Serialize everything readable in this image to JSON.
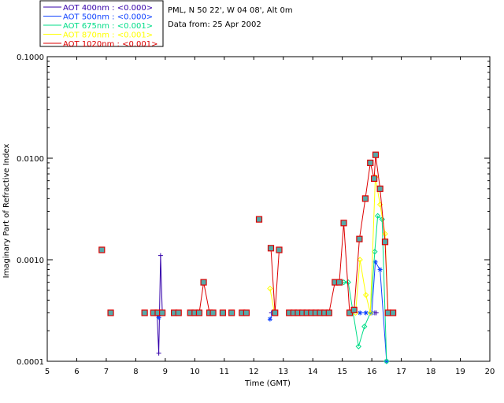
{
  "chart_data": {
    "type": "line",
    "title": "",
    "xlabel": "Time (GMT)",
    "ylabel": "Imaginary Part of Refractive Index",
    "x_range": [
      5,
      20
    ],
    "y_range": [
      0.0001,
      0.1
    ],
    "y_scale": "log",
    "x_ticks": [
      "5",
      "6",
      "7",
      "8",
      "9",
      "10",
      "11",
      "12",
      "13",
      "14",
      "15",
      "16",
      "17",
      "18",
      "19",
      "20"
    ],
    "y_ticks": [
      {
        "value": 0.0001,
        "label": "0.0001"
      },
      {
        "value": 0.001,
        "label": "0.0010"
      },
      {
        "value": 0.01,
        "label": "0.0100"
      },
      {
        "value": 0.1,
        "label": "0.1000"
      }
    ],
    "info_lines": [
      "PML, N 50 22', W 04 08', Alt 0m",
      "Data from: 25 Apr 2002"
    ],
    "legend_placement": "top-left outside",
    "series": [
      {
        "name": "AOT  400nm : <0.000>",
        "color": "#3300aa",
        "marker": "plus",
        "segments": [
          [
            [
              8.72,
              0.0003
            ],
            [
              8.78,
              0.00012
            ],
            [
              8.84,
              0.0011
            ],
            [
              8.9,
              0.0003
            ]
          ],
          [
            [
              12.6,
              0.0003
            ],
            [
              12.7,
              0.0003
            ]
          ],
          [
            [
              16.1,
              0.0003
            ],
            [
              16.15,
              0.0003
            ]
          ]
        ]
      },
      {
        "name": "AOT  500nm : <0.000>",
        "color": "#1144ff",
        "marker": "asterisk",
        "segments": [
          [
            [
              8.7,
              0.0003
            ],
            [
              8.78,
              0.00027
            ],
            [
              8.86,
              0.0003
            ]
          ],
          [
            [
              12.55,
              0.00026
            ],
            [
              12.65,
              0.0003
            ]
          ],
          [
            [
              15.6,
              0.0003
            ],
            [
              15.8,
              0.0003
            ],
            [
              16.0,
              0.0003
            ],
            [
              16.12,
              0.00095
            ],
            [
              16.28,
              0.0008
            ],
            [
              16.5,
              0.0001
            ]
          ]
        ]
      },
      {
        "name": "AOT  675nm : <0.001>",
        "color": "#00dd88",
        "marker": "diamond",
        "segments": [
          [
            [
              14.9,
              0.0006
            ],
            [
              15.05,
              0.0006
            ],
            [
              15.2,
              0.0006
            ],
            [
              15.55,
              0.00014
            ],
            [
              15.75,
              0.00022
            ],
            [
              15.95,
              0.0003
            ],
            [
              16.1,
              0.0012
            ],
            [
              16.2,
              0.0027
            ],
            [
              16.35,
              0.0025
            ],
            [
              16.5,
              0.0001
            ]
          ]
        ]
      },
      {
        "name": "AOT  870nm : <0.001>",
        "color": "#ffff00",
        "marker": "diamond",
        "segments": [
          [
            [
              12.55,
              0.00052
            ],
            [
              12.7,
              0.0003
            ]
          ],
          [
            [
              15.45,
              0.0003
            ],
            [
              15.6,
              0.001
            ],
            [
              15.8,
              0.00045
            ],
            [
              15.95,
              0.0003
            ],
            [
              16.12,
              0.0065
            ],
            [
              16.28,
              0.0035
            ],
            [
              16.45,
              0.0018
            ],
            [
              16.55,
              0.0003
            ]
          ]
        ]
      },
      {
        "name": "AOT 1020nm : <0.001>",
        "color": "#dd0000",
        "marker": "square",
        "segments": [
          [
            [
              6.85,
              0.00125
            ]
          ],
          [
            [
              7.15,
              0.0003
            ]
          ],
          [
            [
              8.3,
              0.0003
            ]
          ],
          [
            [
              8.6,
              0.0003
            ],
            [
              8.75,
              0.0003
            ],
            [
              8.9,
              0.0003
            ]
          ],
          [
            [
              9.3,
              0.0003
            ],
            [
              9.45,
              0.0003
            ]
          ],
          [
            [
              9.85,
              0.0003
            ],
            [
              10.0,
              0.0003
            ],
            [
              10.15,
              0.0003
            ],
            [
              10.3,
              0.0006
            ],
            [
              10.5,
              0.0003
            ],
            [
              10.62,
              0.0003
            ]
          ],
          [
            [
              10.95,
              0.0003
            ]
          ],
          [
            [
              11.25,
              0.0003
            ]
          ],
          [
            [
              11.6,
              0.0003
            ],
            [
              11.75,
              0.0003
            ]
          ],
          [
            [
              12.18,
              0.0025
            ]
          ],
          [
            [
              12.58,
              0.0013
            ],
            [
              12.72,
              0.0003
            ],
            [
              12.86,
              0.00125
            ]
          ],
          [
            [
              13.2,
              0.0003
            ],
            [
              13.35,
              0.0003
            ],
            [
              13.5,
              0.0003
            ],
            [
              13.65,
              0.0003
            ],
            [
              13.8,
              0.0003
            ],
            [
              13.95,
              0.0003
            ],
            [
              14.1,
              0.0003
            ],
            [
              14.25,
              0.0003
            ],
            [
              14.4,
              0.0003
            ],
            [
              14.55,
              0.0003
            ],
            [
              14.75,
              0.0006
            ],
            [
              14.9,
              0.0006
            ],
            [
              15.05,
              0.0023
            ],
            [
              15.25,
              0.0003
            ],
            [
              15.4,
              0.00032
            ],
            [
              15.58,
              0.0016
            ],
            [
              15.78,
              0.004
            ],
            [
              15.95,
              0.009
            ],
            [
              16.08,
              0.0063
            ],
            [
              16.13,
              0.0108
            ],
            [
              16.28,
              0.005
            ],
            [
              16.45,
              0.0015
            ],
            [
              16.55,
              0.0003
            ],
            [
              16.72,
              0.0003
            ]
          ]
        ]
      }
    ]
  }
}
